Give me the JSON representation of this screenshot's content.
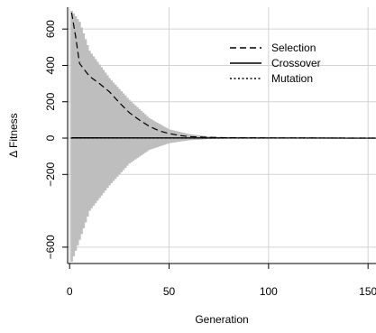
{
  "chart_data": {
    "type": "bar",
    "title": "",
    "xlabel": "Generation",
    "ylabel": "Δ Fitness",
    "xlim": [
      -1,
      154
    ],
    "ylim": [
      -690,
      720
    ],
    "x_ticks": [
      0,
      50,
      100,
      150
    ],
    "x_tick_labels": [
      "0",
      "50",
      "100",
      "150"
    ],
    "y_ticks": [
      -600,
      -200,
      0,
      200,
      400,
      600
    ],
    "y_tick_labels": [
      "−600",
      "−200",
      "0",
      "200",
      "400",
      "600"
    ],
    "grid": true,
    "legend_position": "top-right",
    "colors": {
      "bars": "#bebebe",
      "grid": "#d3d3d3",
      "lines": "#000000"
    },
    "range_bars": [
      {
        "x": 1,
        "low": -680,
        "high": 700
      },
      {
        "x": 5,
        "low": -560,
        "high": 640
      },
      {
        "x": 10,
        "low": -400,
        "high": 480
      },
      {
        "x": 20,
        "low": -260,
        "high": 330
      },
      {
        "x": 30,
        "low": -140,
        "high": 210
      },
      {
        "x": 40,
        "low": -65,
        "high": 110
      },
      {
        "x": 50,
        "low": -28,
        "high": 48
      },
      {
        "x": 60,
        "low": -12,
        "high": 22
      },
      {
        "x": 70,
        "low": -5,
        "high": 9
      },
      {
        "x": 80,
        "low": -2,
        "high": 4
      },
      {
        "x": 100,
        "low": -1,
        "high": 1
      },
      {
        "x": 154,
        "low": -1,
        "high": 1
      }
    ],
    "series": [
      {
        "name": "Selection",
        "line_style": "dashed",
        "x": [
          1,
          3,
          5,
          10,
          15,
          20,
          25,
          30,
          35,
          40,
          45,
          50,
          55,
          60,
          70,
          80,
          100,
          154
        ],
        "y": [
          690,
          560,
          410,
          340,
          300,
          255,
          195,
          140,
          100,
          65,
          40,
          25,
          15,
          8,
          4,
          2,
          1,
          0
        ]
      },
      {
        "name": "Crossover",
        "line_style": "solid",
        "x": [
          1,
          154
        ],
        "y": [
          2,
          0
        ]
      },
      {
        "name": "Mutation",
        "line_style": "dotted",
        "x": [
          1,
          154
        ],
        "y": [
          0,
          0
        ]
      }
    ]
  }
}
